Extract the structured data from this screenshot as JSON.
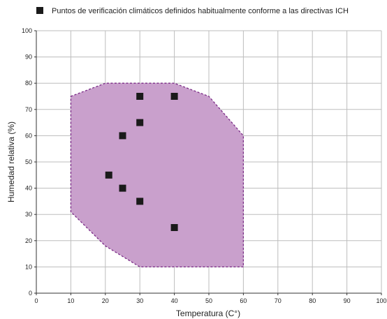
{
  "colors": {
    "region_fill": "#c9a0cc",
    "region_stroke": "#7a2a86",
    "marker": "#1a1a1a",
    "grid": "#bdbdbd",
    "axis": "#333333"
  },
  "chart_data": {
    "type": "scatter",
    "title": "",
    "xlabel": "Temperatura (C°)",
    "ylabel": "Humedad relativa (%)",
    "xlim": [
      0,
      100
    ],
    "ylim": [
      0,
      100
    ],
    "xticks": [
      "0",
      "10",
      "20",
      "30",
      "40",
      "50",
      "60",
      "70",
      "80",
      "90",
      "100"
    ],
    "yticks": [
      "0",
      "10",
      "20",
      "30",
      "40",
      "50",
      "60",
      "70",
      "80",
      "90",
      "100"
    ],
    "grid": true,
    "legend": {
      "position": "top",
      "entries": [
        "Puntos de verificación climáticos definidos habitualmente conforme a las directivas ICH"
      ]
    },
    "region": {
      "style": "dashed-outline-filled",
      "vertices": [
        [
          10,
          75
        ],
        [
          20,
          80
        ],
        [
          40,
          80
        ],
        [
          50,
          75
        ],
        [
          60,
          60
        ],
        [
          60,
          10
        ],
        [
          30,
          10
        ],
        [
          20,
          18
        ],
        [
          10,
          31
        ]
      ]
    },
    "series": [
      {
        "name": "Puntos de verificación climáticos definidos habitualmente conforme a las directivas ICH",
        "marker": "square",
        "points": [
          [
            21,
            45
          ],
          [
            25,
            60
          ],
          [
            25,
            40
          ],
          [
            30,
            75
          ],
          [
            30,
            65
          ],
          [
            30,
            35
          ],
          [
            40,
            75
          ],
          [
            40,
            25
          ]
        ]
      }
    ]
  }
}
